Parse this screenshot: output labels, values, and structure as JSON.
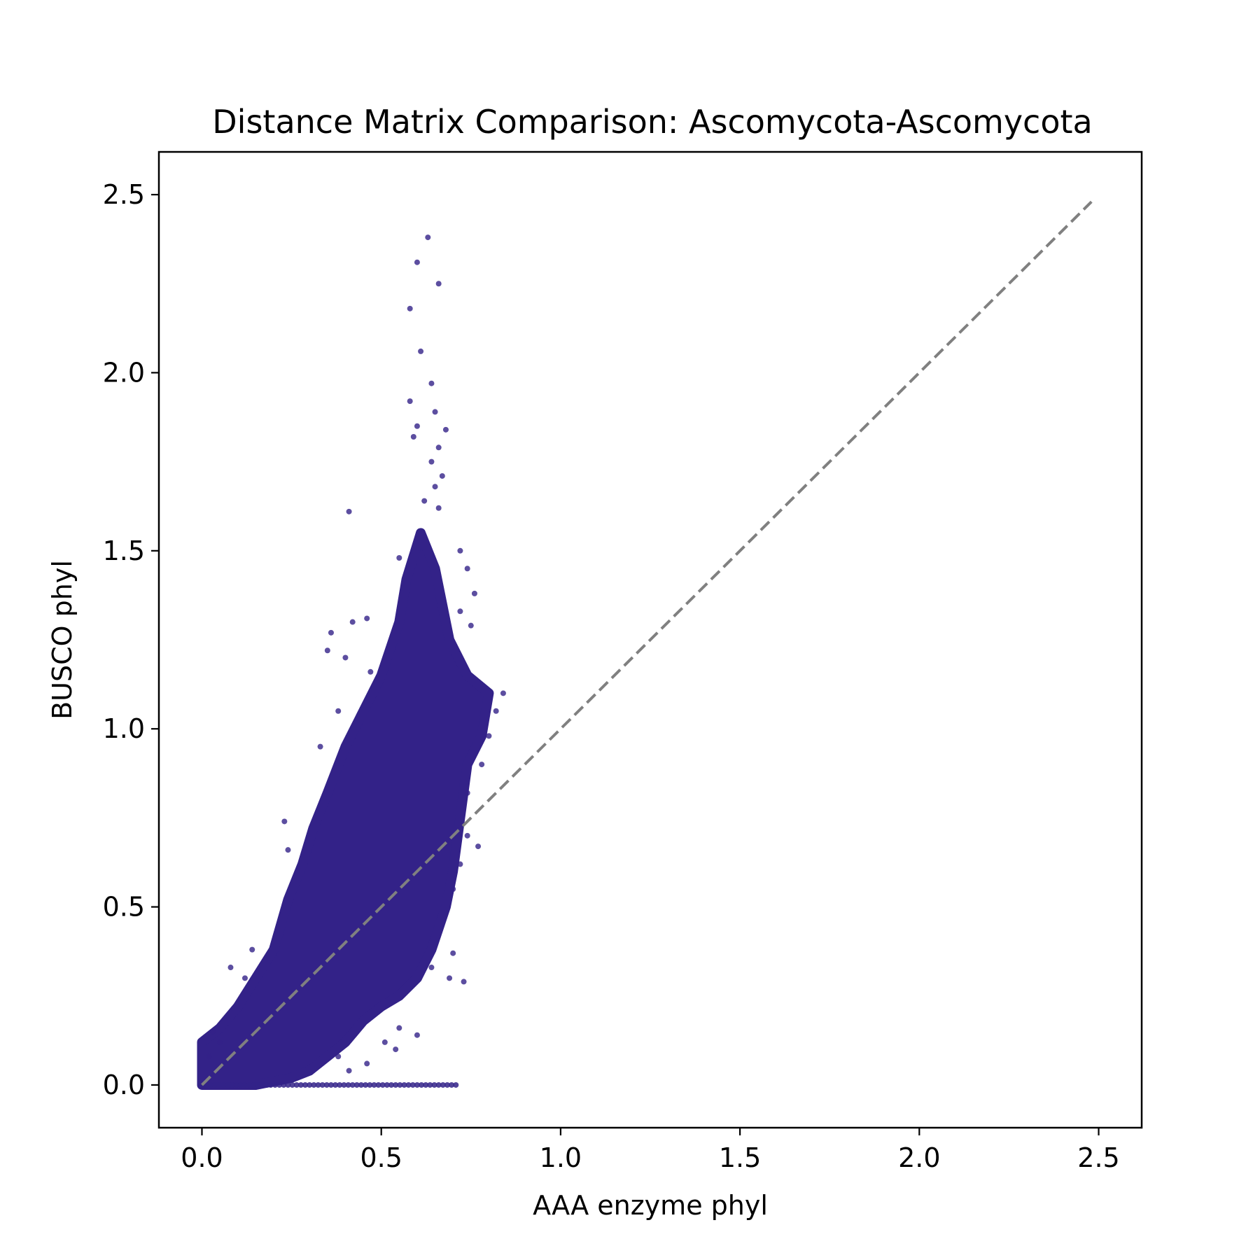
{
  "chart_data": {
    "type": "scatter",
    "title": "Distance Matrix Comparison: Ascomycota-Ascomycota",
    "xlabel": "AAA enzyme phyl",
    "ylabel": "BUSCO phyl",
    "xlim": [
      -0.12,
      2.62
    ],
    "ylim": [
      -0.12,
      2.62
    ],
    "xticks": [
      "0.0",
      "0.5",
      "1.0",
      "1.5",
      "2.0",
      "2.5"
    ],
    "yticks": [
      "0.0",
      "0.5",
      "1.0",
      "1.5",
      "2.0",
      "2.5"
    ],
    "grid": false,
    "legend": false,
    "colors": {
      "points": "#332288",
      "identity_line": "#808080",
      "frame": "#000000"
    },
    "series": [
      {
        "marker_color": "#332288",
        "description_shape": "dense cloud",
        "cloud_outline": [
          [
            0.0,
            0.0
          ],
          [
            0.0,
            0.12
          ],
          [
            0.05,
            0.16
          ],
          [
            0.1,
            0.22
          ],
          [
            0.15,
            0.3
          ],
          [
            0.2,
            0.38
          ],
          [
            0.24,
            0.52
          ],
          [
            0.28,
            0.62
          ],
          [
            0.31,
            0.72
          ],
          [
            0.35,
            0.82
          ],
          [
            0.4,
            0.95
          ],
          [
            0.45,
            1.05
          ],
          [
            0.5,
            1.15
          ],
          [
            0.55,
            1.3
          ],
          [
            0.57,
            1.42
          ],
          [
            0.61,
            1.55
          ],
          [
            0.65,
            1.45
          ],
          [
            0.69,
            1.25
          ],
          [
            0.74,
            1.15
          ],
          [
            0.8,
            1.1
          ],
          [
            0.78,
            0.98
          ],
          [
            0.74,
            0.9
          ],
          [
            0.72,
            0.75
          ],
          [
            0.7,
            0.6
          ],
          [
            0.68,
            0.5
          ],
          [
            0.64,
            0.38
          ],
          [
            0.6,
            0.3
          ],
          [
            0.55,
            0.25
          ],
          [
            0.5,
            0.22
          ],
          [
            0.45,
            0.18
          ],
          [
            0.4,
            0.12
          ],
          [
            0.35,
            0.08
          ],
          [
            0.3,
            0.04
          ],
          [
            0.25,
            0.02
          ],
          [
            0.15,
            0.0
          ]
        ],
        "outliers": [
          [
            0.63,
            2.38
          ],
          [
            0.6,
            2.31
          ],
          [
            0.66,
            2.25
          ],
          [
            0.58,
            2.18
          ],
          [
            0.61,
            2.06
          ],
          [
            0.64,
            1.97
          ],
          [
            0.58,
            1.92
          ],
          [
            0.65,
            1.89
          ],
          [
            0.6,
            1.85
          ],
          [
            0.68,
            1.84
          ],
          [
            0.59,
            1.82
          ],
          [
            0.66,
            1.79
          ],
          [
            0.64,
            1.75
          ],
          [
            0.67,
            1.71
          ],
          [
            0.65,
            1.68
          ],
          [
            0.62,
            1.64
          ],
          [
            0.41,
            1.61
          ],
          [
            0.66,
            1.62
          ],
          [
            0.55,
            1.48
          ],
          [
            0.72,
            1.5
          ],
          [
            0.74,
            1.45
          ],
          [
            0.76,
            1.38
          ],
          [
            0.72,
            1.33
          ],
          [
            0.75,
            1.29
          ],
          [
            0.36,
            1.27
          ],
          [
            0.42,
            1.3
          ],
          [
            0.46,
            1.31
          ],
          [
            0.35,
            1.22
          ],
          [
            0.4,
            1.2
          ],
          [
            0.47,
            1.16
          ],
          [
            0.84,
            1.1
          ],
          [
            0.82,
            1.05
          ],
          [
            0.8,
            0.98
          ],
          [
            0.33,
            0.95
          ],
          [
            0.38,
            1.05
          ],
          [
            0.78,
            0.9
          ],
          [
            0.74,
            0.82
          ],
          [
            0.77,
            0.67
          ],
          [
            0.74,
            0.7
          ],
          [
            0.23,
            0.74
          ],
          [
            0.24,
            0.66
          ],
          [
            0.72,
            0.62
          ],
          [
            0.7,
            0.55
          ],
          [
            0.14,
            0.38
          ],
          [
            0.08,
            0.33
          ],
          [
            0.12,
            0.3
          ],
          [
            0.64,
            0.33
          ],
          [
            0.7,
            0.37
          ],
          [
            0.73,
            0.29
          ],
          [
            0.69,
            0.3
          ],
          [
            0.6,
            0.14
          ],
          [
            0.55,
            0.16
          ],
          [
            0.51,
            0.12
          ],
          [
            0.54,
            0.1
          ],
          [
            0.46,
            0.06
          ],
          [
            0.38,
            0.08
          ],
          [
            0.41,
            0.04
          ],
          [
            0.03,
            0.15
          ],
          [
            0.05,
            0.12
          ],
          [
            0.02,
            0.08
          ]
        ],
        "zero_row_range": [
          0.0,
          0.71
        ]
      },
      {
        "type": "line",
        "style": "dashed",
        "color": "#808080",
        "x": [
          0.0,
          2.48
        ],
        "y": [
          0.0,
          2.48
        ]
      }
    ]
  }
}
